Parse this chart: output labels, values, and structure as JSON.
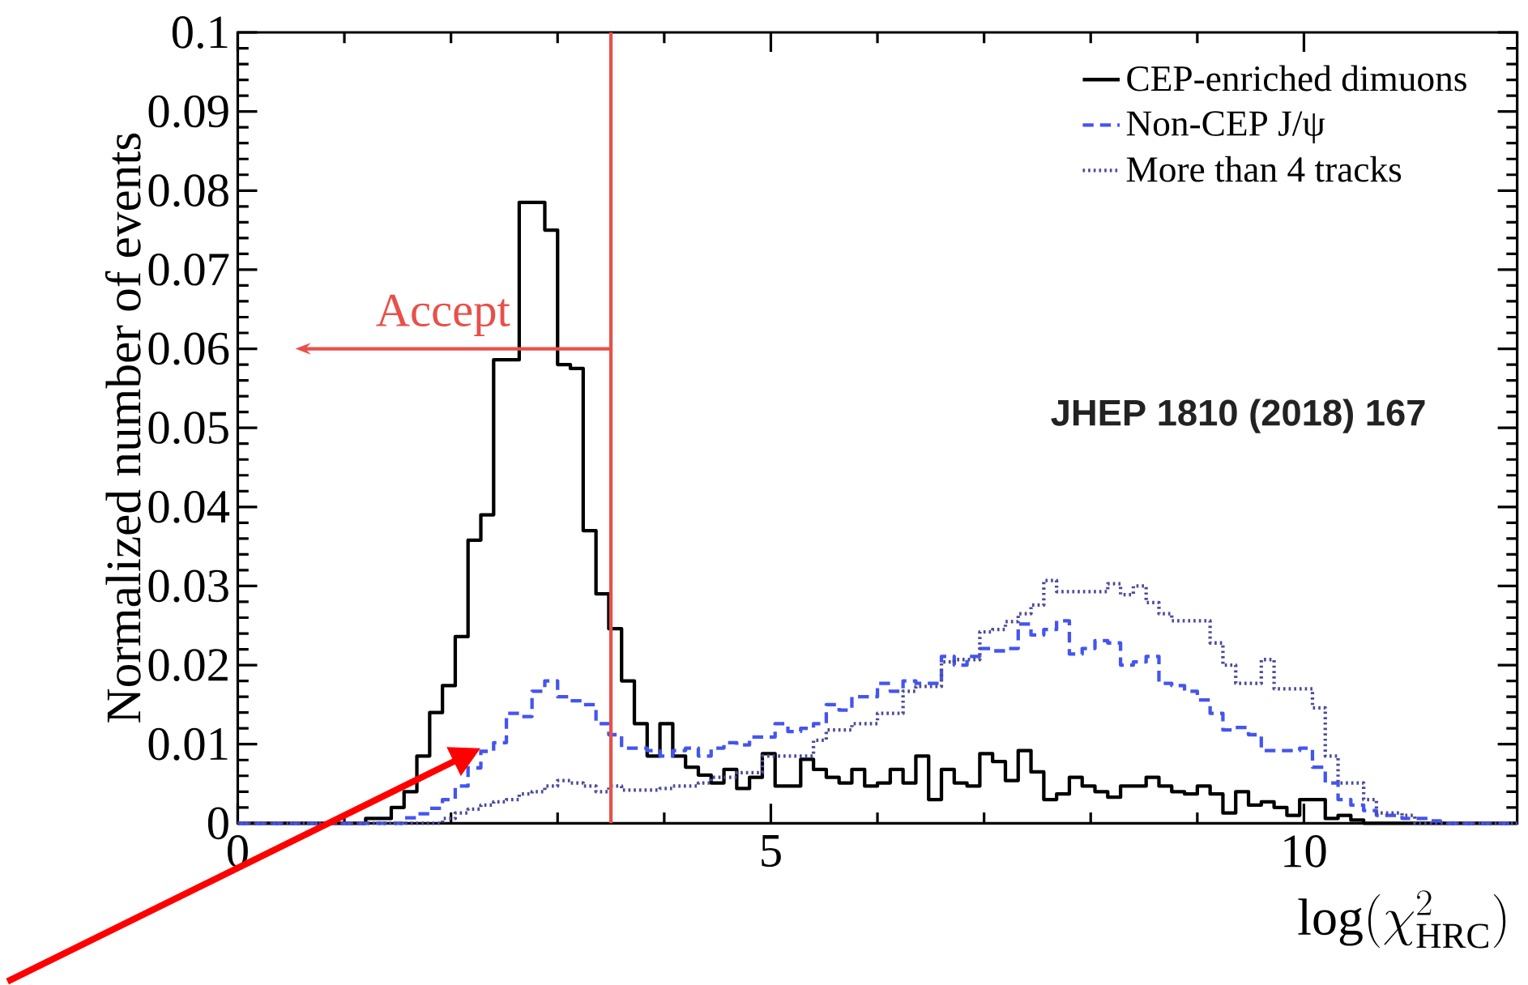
{
  "chart_data": {
    "type": "histogram",
    "xlabel": "\\mathrm{log}(\\chi^{2}_{\\mathrm{HRC}})",
    "ylabel": "Normalized number of events",
    "annotations": [
      "JHEP 1810 (2018) 167"
    ],
    "bins": [
      0,
      0.12,
      0.24,
      0.36,
      0.48,
      0.6,
      0.72,
      0.84,
      0.96,
      1.08,
      1.2,
      1.32,
      1.44,
      1.56,
      1.68,
      1.8,
      1.92,
      2.04,
      2.16,
      2.28,
      2.4,
      2.52,
      2.64,
      2.76,
      2.88,
      3,
      3.12,
      3.24,
      3.36,
      3.48,
      3.6,
      3.72,
      3.84,
      3.96,
      4.08,
      4.2,
      4.32,
      4.44,
      4.56,
      4.68,
      4.8,
      4.92,
      5.04,
      5.16,
      5.28,
      5.4,
      5.52,
      5.64,
      5.76,
      5.88,
      6,
      6.12,
      6.24,
      6.36,
      6.48,
      6.6,
      6.72,
      6.84,
      6.96,
      7.08,
      7.2,
      7.32,
      7.44,
      7.56,
      7.68,
      7.8,
      7.92,
      8.04,
      8.16,
      8.28,
      8.4,
      8.52,
      8.64,
      8.76,
      8.88,
      9,
      9.12,
      9.24,
      9.36,
      9.48,
      9.6,
      9.72,
      9.84,
      9.96,
      10.08,
      10.2,
      10.32,
      10.44,
      10.56,
      10.68,
      10.8,
      10.92,
      11.04,
      11.16,
      11.28,
      11.4,
      11.52,
      11.64,
      11.76,
      11.88,
      12
    ],
    "series": [
      {
        "name": "CEP-enriched dimuons",
        "color": "#000000",
        "line_style": "solid",
        "values": [
          0,
          0,
          0,
          0,
          0,
          0,
          0,
          0,
          0,
          0,
          0.0006,
          0.0006,
          0.002,
          0.004,
          0.0085,
          0.014,
          0.0174,
          0.0236,
          0.0358,
          0.039,
          0.0586,
          0.0586,
          0.0785,
          0.0785,
          0.075,
          0.058,
          0.0575,
          0.037,
          0.029,
          0.0246,
          0.018,
          0.0126,
          0.0085,
          0.0126,
          0.0085,
          0.0071,
          0.0061,
          0.0051,
          0.0068,
          0.0044,
          0.0058,
          0.0088,
          0.0047,
          0.0047,
          0.0081,
          0.0068,
          0.0058,
          0.0051,
          0.0068,
          0.0047,
          0.0051,
          0.0068,
          0.0051,
          0.0085,
          0.003,
          0.0068,
          0.0051,
          0.0047,
          0.0088,
          0.0078,
          0.0054,
          0.0092,
          0.0065,
          0.003,
          0.0037,
          0.0058,
          0.0047,
          0.004,
          0.0033,
          0.0047,
          0.0047,
          0.0058,
          0.0047,
          0.004,
          0.0037,
          0.0047,
          0.0037,
          0.0013,
          0.004,
          0.0023,
          0.0027,
          0.002,
          0.001,
          0.003,
          0.003,
          0.0006,
          0.001,
          0.0004,
          0,
          0,
          0,
          0,
          0,
          0,
          0,
          0,
          0,
          0,
          0,
          0
        ]
      },
      {
        "name": "Non-CEP J/ψ",
        "color": "#4455ee",
        "line_style": "dashed",
        "values": [
          0,
          0,
          0,
          0,
          0,
          0,
          0,
          0,
          0,
          0,
          0,
          0,
          0,
          0.0007,
          0.0012,
          0.0019,
          0.003,
          0.0047,
          0.007,
          0.0091,
          0.0102,
          0.0139,
          0.0135,
          0.0167,
          0.018,
          0.016,
          0.0155,
          0.015,
          0.0126,
          0.0112,
          0.0095,
          0.0095,
          0.0092,
          0.0085,
          0.0092,
          0.0095,
          0.0085,
          0.0095,
          0.0102,
          0.0099,
          0.0109,
          0.0109,
          0.0126,
          0.0116,
          0.012,
          0.0126,
          0.015,
          0.0143,
          0.016,
          0.016,
          0.0177,
          0.0167,
          0.018,
          0.0177,
          0.0177,
          0.0211,
          0.02,
          0.0211,
          0.0221,
          0.0218,
          0.0221,
          0.0252,
          0.0238,
          0.0245,
          0.0256,
          0.0214,
          0.0221,
          0.0231,
          0.0228,
          0.02,
          0.0204,
          0.0211,
          0.0177,
          0.0174,
          0.0167,
          0.0156,
          0.0139,
          0.0118,
          0.0121,
          0.0112,
          0.0092,
          0.0092,
          0.0092,
          0.0095,
          0.0071,
          0.0051,
          0.003,
          0.0023,
          0.0016,
          0.001,
          0.001,
          0.0006,
          0.0006,
          0.0003,
          0,
          0,
          0,
          0,
          0,
          0
        ]
      },
      {
        "name": "More than 4 tracks",
        "color": "#4b4b9a",
        "line_style": "dotted",
        "values": [
          0,
          0,
          0,
          0,
          0,
          0,
          0,
          0,
          0,
          0,
          0,
          0,
          0,
          0,
          0,
          0,
          0.0006,
          0.0013,
          0.0018,
          0.0023,
          0.0027,
          0.003,
          0.0037,
          0.004,
          0.0047,
          0.0054,
          0.0051,
          0.0047,
          0.004,
          0.0047,
          0.0042,
          0.0042,
          0.0042,
          0.0044,
          0.0047,
          0.0047,
          0.0051,
          0.0058,
          0.0058,
          0.0064,
          0.0064,
          0.0085,
          0.0085,
          0.0085,
          0.0085,
          0.0105,
          0.0118,
          0.0118,
          0.0126,
          0.0126,
          0.0139,
          0.0139,
          0.0167,
          0.0173,
          0.0173,
          0.0204,
          0.0207,
          0.0207,
          0.0242,
          0.0245,
          0.0255,
          0.0265,
          0.0276,
          0.0307,
          0.0293,
          0.0293,
          0.0293,
          0.0293,
          0.0303,
          0.0289,
          0.03,
          0.0279,
          0.0265,
          0.0256,
          0.0256,
          0.0256,
          0.0228,
          0.02,
          0.0177,
          0.0177,
          0.0207,
          0.017,
          0.017,
          0.017,
          0.0146,
          0.0085,
          0.0051,
          0.0051,
          0.003,
          0.0013,
          0.0013,
          0.001,
          0,
          0,
          0,
          0,
          0,
          0,
          0,
          0
        ]
      }
    ],
    "ref_lines": [
      {
        "axis": "x",
        "value": 3.5,
        "label": "Accept",
        "color": "#e8504a"
      }
    ],
    "xlim": [
      0,
      12
    ],
    "xticks": [
      0,
      5,
      10
    ],
    "ylim": [
      0,
      0.1
    ],
    "yticks": [
      0,
      0.01,
      0.02,
      0.03,
      0.04,
      0.05,
      0.06,
      0.07,
      0.08,
      0.09,
      0.1
    ],
    "legend": "top right"
  }
}
